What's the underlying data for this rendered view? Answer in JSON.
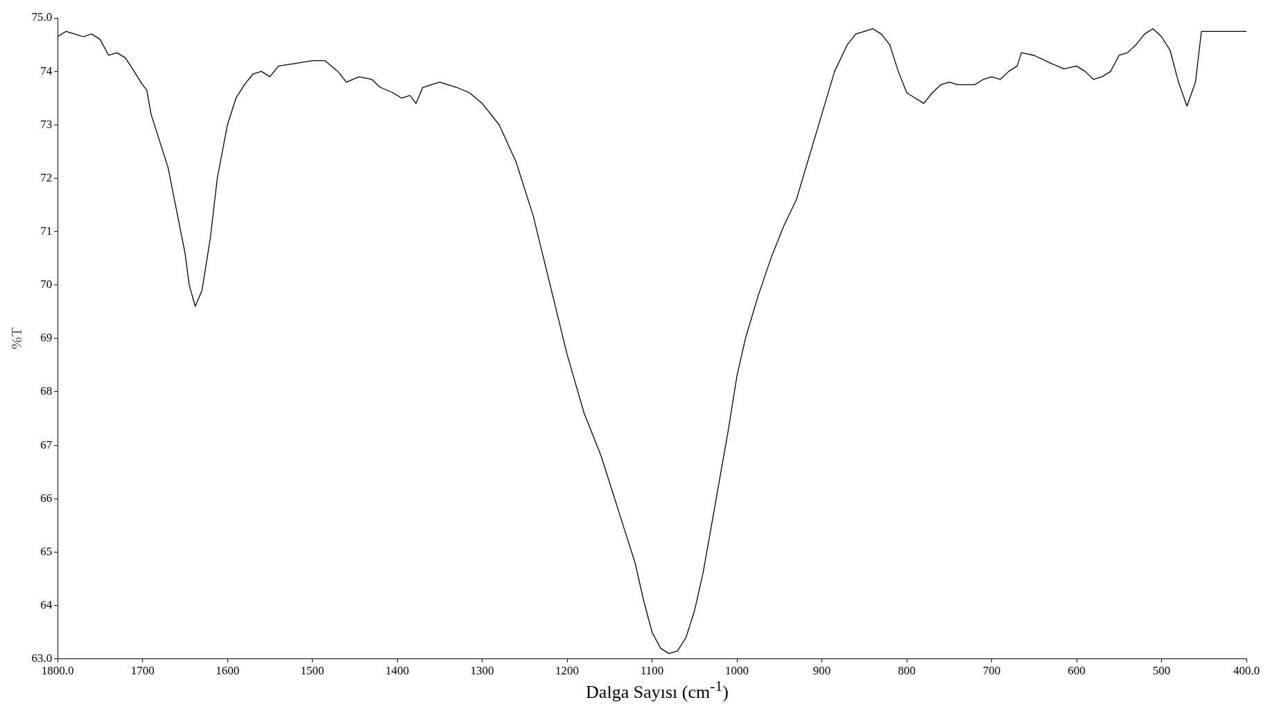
{
  "chart_data": {
    "type": "line",
    "xlabel": "Dalga Sayısı (cm$^{-1}$)",
    "ylabel": "%T",
    "xlim": [
      1800,
      400
    ],
    "xticks": [
      {
        "value": 1800,
        "label": "1800.0"
      },
      1700,
      1600,
      1500,
      1400,
      1300,
      1200,
      1100,
      1000,
      900,
      800,
      700,
      600,
      500,
      {
        "value": 400,
        "label": "400.0"
      }
    ],
    "ylim": [
      63,
      75
    ],
    "yticks": [
      {
        "value": 63,
        "label": "63.0"
      },
      64,
      65,
      66,
      67,
      68,
      69,
      70,
      71,
      72,
      73,
      74,
      {
        "value": 75,
        "label": "75.0"
      }
    ],
    "grid": false,
    "legend": false,
    "marker": "none",
    "line_style": "solid",
    "series": [
      {
        "color": "#000000",
        "x": [
          1800,
          1790,
          1780,
          1770,
          1760,
          1750,
          1740,
          1730,
          1720,
          1710,
          1700,
          1695,
          1690,
          1680,
          1670,
          1660,
          1650,
          1645,
          1638,
          1630,
          1620,
          1612,
          1600,
          1590,
          1580,
          1570,
          1560,
          1550,
          1540,
          1520,
          1500,
          1485,
          1470,
          1460,
          1445,
          1430,
          1420,
          1405,
          1395,
          1385,
          1378,
          1370,
          1360,
          1350,
          1330,
          1315,
          1300,
          1280,
          1260,
          1240,
          1220,
          1200,
          1180,
          1160,
          1150,
          1140,
          1120,
          1110,
          1100,
          1090,
          1080,
          1070,
          1060,
          1050,
          1040,
          1030,
          1020,
          1010,
          1000,
          990,
          975,
          960,
          945,
          930,
          915,
          900,
          885,
          870,
          860,
          850,
          840,
          830,
          820,
          810,
          800,
          790,
          780,
          770,
          760,
          750,
          740,
          730,
          720,
          710,
          700,
          690,
          680,
          670,
          665,
          650,
          630,
          615,
          600,
          590,
          580,
          570,
          560,
          550,
          540,
          530,
          520,
          510,
          500,
          490,
          480,
          470,
          460,
          453,
          440,
          420,
          400
        ],
        "values": [
          74.65,
          74.75,
          74.7,
          74.65,
          74.7,
          74.6,
          74.3,
          74.35,
          74.25,
          74.0,
          73.75,
          73.65,
          73.2,
          72.7,
          72.2,
          71.4,
          70.6,
          70.0,
          69.6,
          69.9,
          70.9,
          72.0,
          73.0,
          73.5,
          73.75,
          73.95,
          74.0,
          73.9,
          74.1,
          74.15,
          74.2,
          74.2,
          74.0,
          73.8,
          73.9,
          73.85,
          73.7,
          73.6,
          73.5,
          73.55,
          73.4,
          73.7,
          73.75,
          73.8,
          73.7,
          73.6,
          73.4,
          73.0,
          72.3,
          71.3,
          70.0,
          68.7,
          67.6,
          66.8,
          66.3,
          65.8,
          64.8,
          64.1,
          63.5,
          63.2,
          63.1,
          63.15,
          63.4,
          63.9,
          64.6,
          65.5,
          66.4,
          67.3,
          68.3,
          69.0,
          69.8,
          70.5,
          71.1,
          71.6,
          72.4,
          73.2,
          74.0,
          74.5,
          74.7,
          74.75,
          74.8,
          74.7,
          74.5,
          74.0,
          73.6,
          73.5,
          73.4,
          73.6,
          73.75,
          73.8,
          73.75,
          73.75,
          73.75,
          73.85,
          73.9,
          73.85,
          74.0,
          74.1,
          74.35,
          74.3,
          74.15,
          74.05,
          74.1,
          74.0,
          73.85,
          73.9,
          74.0,
          74.3,
          74.35,
          74.5,
          74.7,
          74.8,
          74.65,
          74.4,
          73.8,
          73.35,
          73.8,
          74.75,
          74.75,
          74.75,
          74.75
        ]
      }
    ]
  }
}
